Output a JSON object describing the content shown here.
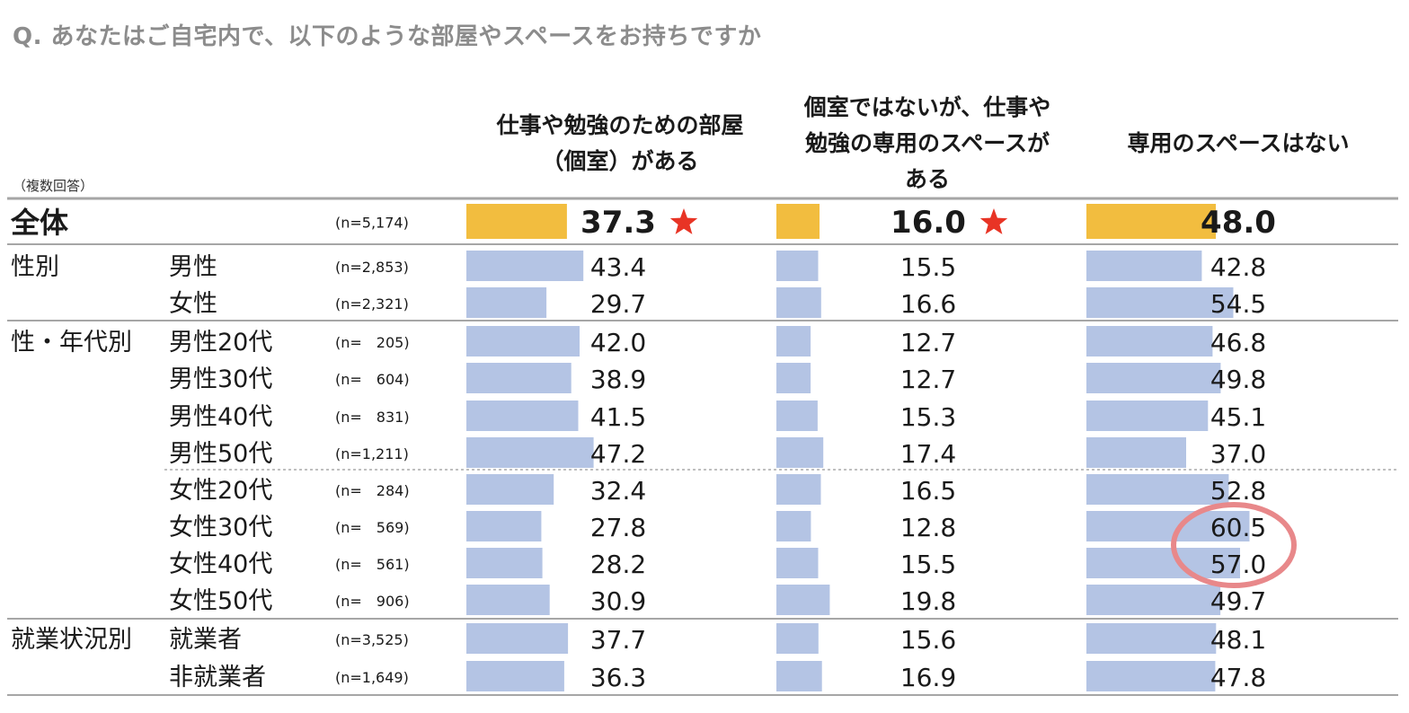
{
  "title": "Q.  あなたはご自宅内で、以下のような部屋やスペースをお持ちですか",
  "note": "（複数回答）",
  "column_headers": [
    "仕事や勉強のための部屋\n（個室）がある",
    "個室ではないが、仕事や\n勉強の専用のスペースが\nある",
    "専用のスペースはない"
  ],
  "colors": {
    "total_bar": "#f2bd3f",
    "bar": "#b4c4e4",
    "star": "#e83425",
    "highlight_circle": "#e8888a",
    "title": "#8c8c8c"
  },
  "chart_data": {
    "type": "bar",
    "orientation": "horizontal",
    "series_names": [
      "仕事や勉強のための部屋（個室）がある",
      "個室ではないが、仕事や勉強の専用のスペースがある",
      "専用のスペースはない"
    ],
    "rows": [
      {
        "group": "全体",
        "label": "",
        "n": "(n=5,174)",
        "values": [
          "37.3",
          "16.0",
          "48.0"
        ],
        "star": [
          true,
          true,
          false
        ],
        "total": true
      },
      {
        "group": "性別",
        "label": "男性",
        "n": "(n=2,853)",
        "values": [
          "43.4",
          "15.5",
          "42.8"
        ]
      },
      {
        "group": "",
        "label": "女性",
        "n": "(n=2,321)",
        "values": [
          "29.7",
          "16.6",
          "54.5"
        ]
      },
      {
        "group": "性・年代別",
        "label": "男性20代",
        "n": "(n=　205)",
        "values": [
          "42.0",
          "12.7",
          "46.8"
        ]
      },
      {
        "group": "",
        "label": "男性30代",
        "n": "(n=　604)",
        "values": [
          "38.9",
          "12.7",
          "49.8"
        ]
      },
      {
        "group": "",
        "label": "男性40代",
        "n": "(n=　831)",
        "values": [
          "41.5",
          "15.3",
          "45.1"
        ]
      },
      {
        "group": "",
        "label": "男性50代",
        "n": "(n=1,211)",
        "values": [
          "47.2",
          "17.4",
          "37.0"
        ]
      },
      {
        "group": "",
        "label": "女性20代",
        "n": "(n=　284)",
        "values": [
          "32.4",
          "16.5",
          "52.8"
        ]
      },
      {
        "group": "",
        "label": "女性30代",
        "n": "(n=　569)",
        "values": [
          "27.8",
          "12.8",
          "60.5"
        ],
        "highlight": [
          false,
          false,
          true
        ]
      },
      {
        "group": "",
        "label": "女性40代",
        "n": "(n=　561)",
        "values": [
          "28.2",
          "15.5",
          "57.0"
        ],
        "highlight": [
          false,
          false,
          true
        ]
      },
      {
        "group": "",
        "label": "女性50代",
        "n": "(n=　906)",
        "values": [
          "30.9",
          "19.8",
          "49.7"
        ]
      },
      {
        "group": "就業状況別",
        "label": "就業者",
        "n": "(n=3,525)",
        "values": [
          "37.7",
          "15.6",
          "48.1"
        ]
      },
      {
        "group": "",
        "label": "非就業者",
        "n": "(n=1,649)",
        "values": [
          "36.3",
          "16.9",
          "47.8"
        ]
      }
    ],
    "value_range": [
      0,
      100
    ],
    "grid": false,
    "legend": "none"
  }
}
